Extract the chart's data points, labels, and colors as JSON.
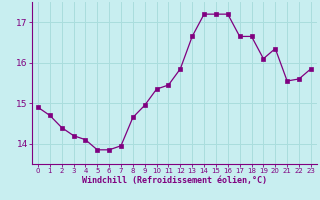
{
  "x": [
    0,
    1,
    2,
    3,
    4,
    5,
    6,
    7,
    8,
    9,
    10,
    11,
    12,
    13,
    14,
    15,
    16,
    17,
    18,
    19,
    20,
    21,
    22,
    23
  ],
  "y": [
    14.9,
    14.7,
    14.4,
    14.2,
    14.1,
    13.85,
    13.85,
    13.95,
    14.65,
    14.95,
    15.35,
    15.45,
    15.85,
    16.65,
    17.2,
    17.2,
    17.2,
    16.65,
    16.65,
    16.1,
    16.35,
    15.55,
    15.6,
    15.85
  ],
  "line_color": "#800080",
  "marker": "s",
  "marker_size": 2.5,
  "bg_color": "#c8eef0",
  "grid_color": "#aadddd",
  "xlabel": "Windchill (Refroidissement éolien,°C)",
  "xlabel_color": "#800080",
  "tick_color": "#800080",
  "ylim": [
    13.5,
    17.5
  ],
  "xlim": [
    -0.5,
    23.5
  ],
  "yticks": [
    14,
    15,
    16,
    17
  ],
  "xticks": [
    0,
    1,
    2,
    3,
    4,
    5,
    6,
    7,
    8,
    9,
    10,
    11,
    12,
    13,
    14,
    15,
    16,
    17,
    18,
    19,
    20,
    21,
    22,
    23
  ]
}
